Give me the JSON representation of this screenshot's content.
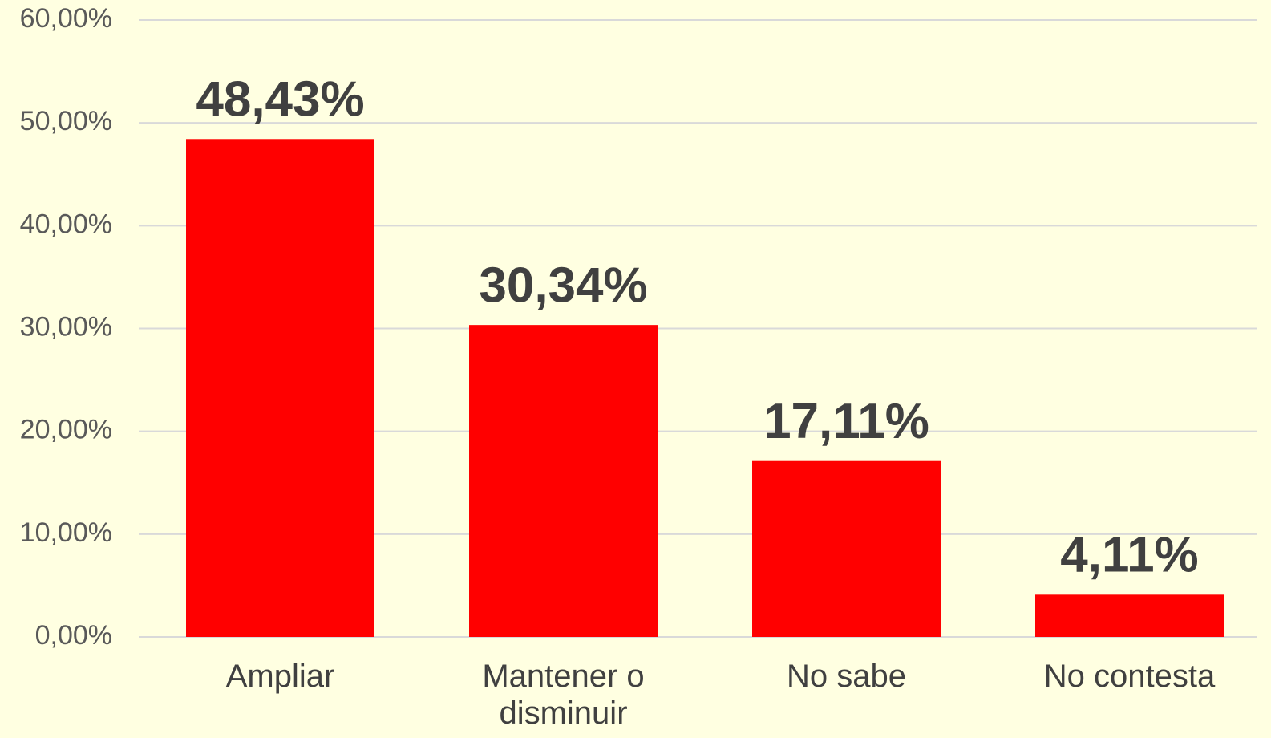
{
  "chart_data": {
    "type": "bar",
    "categories": [
      "Ampliar",
      "Mantener o disminuir",
      "No sabe",
      "No contesta"
    ],
    "values": [
      48.43,
      30.34,
      17.11,
      4.11
    ],
    "value_labels": [
      "48,43%",
      "30,34%",
      "17,11%",
      "4,11%"
    ],
    "color": "#ff0000",
    "ylim": [
      0,
      60
    ],
    "yticks": [
      {
        "value": 0,
        "label": "0,00%"
      },
      {
        "value": 10,
        "label": "10,00%"
      },
      {
        "value": 20,
        "label": "20,00%"
      },
      {
        "value": 30,
        "label": "30,00%"
      },
      {
        "value": 40,
        "label": "40,00%"
      },
      {
        "value": 50,
        "label": "50,00%"
      },
      {
        "value": 60,
        "label": "60,00%"
      }
    ],
    "grid": true
  }
}
